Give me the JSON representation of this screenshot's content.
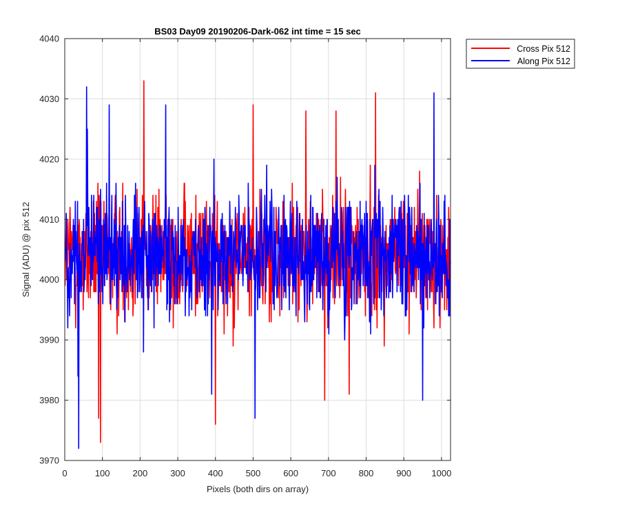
{
  "chart_data": {
    "type": "line",
    "title": "BS03 Day09 20190206-Dark-062 int time = 15 sec",
    "xlabel": "Pixels (both dirs on array)",
    "ylabel": "Signal (ADU) @ pix 512",
    "xlim": [
      0,
      1024
    ],
    "ylim": [
      3970,
      4040
    ],
    "xticks": [
      0,
      100,
      200,
      300,
      400,
      500,
      600,
      700,
      800,
      900,
      1000
    ],
    "yticks": [
      3970,
      3980,
      3990,
      4000,
      4010,
      4020,
      4030,
      4040
    ],
    "grid": true,
    "legend_position": "outside top-right",
    "series": [
      {
        "name": "Cross Pix 512",
        "color": "#ff0000",
        "baseline": 4004,
        "noise_std": 5,
        "peaks": [
          [
            210,
            4033
          ],
          [
            825,
            4031
          ],
          [
            500,
            4029
          ],
          [
            640,
            4028
          ],
          [
            720,
            4028
          ]
        ],
        "dips": [
          [
            95,
            3973
          ],
          [
            90,
            3977
          ],
          [
            400,
            3976
          ],
          [
            690,
            3980
          ],
          [
            755,
            3981
          ]
        ]
      },
      {
        "name": "Along Pix 512",
        "color": "#0000ff",
        "baseline": 4004,
        "noise_std": 5,
        "peaks": [
          [
            58,
            4032
          ],
          [
            980,
            4031
          ],
          [
            118,
            4029
          ],
          [
            268,
            4029
          ],
          [
            60,
            4025
          ]
        ],
        "dips": [
          [
            37,
            3972
          ],
          [
            505,
            3977
          ],
          [
            390,
            3981
          ],
          [
            950,
            3980
          ],
          [
            35,
            3984
          ]
        ]
      }
    ]
  }
}
